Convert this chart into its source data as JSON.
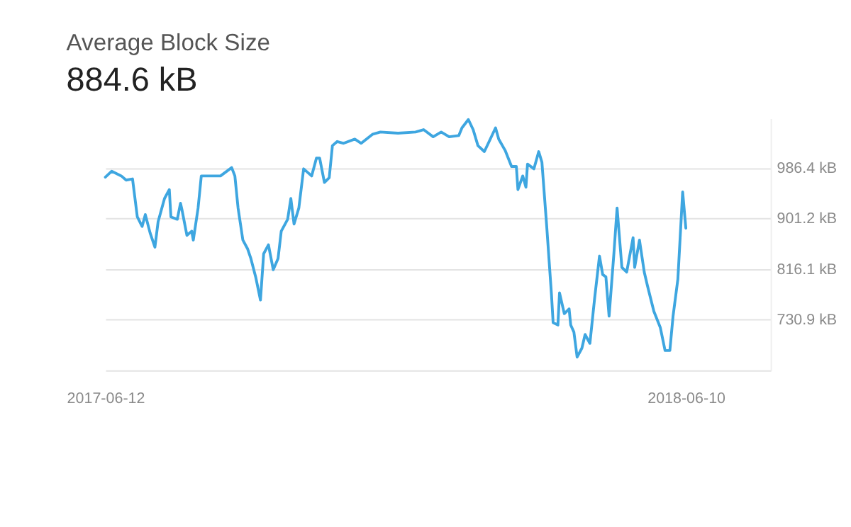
{
  "chart_data": {
    "type": "line",
    "title": "Average Block Size",
    "subtitle": "884.6 kB",
    "x": [
      "2017-06-12",
      "2017-06-16",
      "2017-06-22",
      "2017-06-25",
      "2017-06-29",
      "2017-07-02",
      "2017-07-05",
      "2017-07-07",
      "2017-07-10",
      "2017-07-13",
      "2017-07-15",
      "2017-07-19",
      "2017-07-22",
      "2017-07-23",
      "2017-07-27",
      "2017-07-29",
      "2017-07-30",
      "2017-08-02",
      "2017-08-05",
      "2017-08-06",
      "2017-08-09",
      "2017-08-11",
      "2017-08-18",
      "2017-08-23",
      "2017-08-30",
      "2017-09-01",
      "2017-09-03",
      "2017-09-06",
      "2017-09-09",
      "2017-09-11",
      "2017-09-14",
      "2017-09-17",
      "2017-09-19",
      "2017-09-22",
      "2017-09-25",
      "2017-09-28",
      "2017-09-30",
      "2017-10-04",
      "2017-10-06",
      "2017-10-08",
      "2017-10-11",
      "2017-10-14",
      "2017-10-19",
      "2017-10-22",
      "2017-10-24",
      "2017-10-27",
      "2017-10-30",
      "2017-11-01",
      "2017-11-04",
      "2017-11-08",
      "2017-11-15",
      "2017-11-19",
      "2017-11-26",
      "2017-12-01",
      "2017-12-12",
      "2017-12-23",
      "2017-12-28",
      "2018-01-03",
      "2018-01-08",
      "2018-01-13",
      "2018-01-19",
      "2018-01-21",
      "2018-01-25",
      "2018-01-28",
      "2018-01-31",
      "2018-02-04",
      "2018-02-07",
      "2018-02-11",
      "2018-02-13",
      "2018-02-17",
      "2018-02-21",
      "2018-02-24",
      "2018-02-25",
      "2018-02-28",
      "2018-03-02",
      "2018-03-03",
      "2018-03-07",
      "2018-03-10",
      "2018-03-12",
      "2018-03-15",
      "2018-03-18",
      "2018-03-19",
      "2018-03-22",
      "2018-03-23",
      "2018-03-26",
      "2018-03-29",
      "2018-03-30",
      "2018-04-01",
      "2018-04-03",
      "2018-04-06",
      "2018-04-08",
      "2018-04-11",
      "2018-04-14",
      "2018-04-17",
      "2018-04-19",
      "2018-04-21",
      "2018-04-23",
      "2018-04-26",
      "2018-04-28",
      "2018-05-01",
      "2018-05-04",
      "2018-05-08",
      "2018-05-09",
      "2018-05-12",
      "2018-05-15",
      "2018-05-17",
      "2018-05-21",
      "2018-05-25",
      "2018-05-28",
      "2018-05-31",
      "2018-06-02",
      "2018-06-05",
      "2018-06-08",
      "2018-06-10"
    ],
    "series": [
      {
        "color": "#3ea6e0",
        "values": [
          971,
          981,
          973,
          966,
          968,
          904,
          888,
          908,
          877,
          853,
          896,
          935,
          950,
          904,
          900,
          927,
          915,
          873,
          880,
          865,
          919,
          973,
          973,
          973,
          987,
          973,
          919,
          865,
          850,
          834,
          803,
          764,
          842,
          857,
          815,
          834,
          880,
          900,
          935,
          892,
          919,
          985,
          973,
          1003,
          1003,
          962,
          970,
          1024,
          1031,
          1028,
          1035,
          1028,
          1043,
          1047,
          1045,
          1047,
          1051,
          1039,
          1047,
          1039,
          1041,
          1054,
          1068,
          1051,
          1024,
          1014,
          1031,
          1054,
          1035,
          1016,
          989,
          989,
          950,
          973,
          954,
          993,
          985,
          1014,
          996,
          888,
          772,
          726,
          722,
          776,
          741,
          749,
          722,
          710,
          668,
          683,
          706,
          691,
          768,
          838,
          807,
          803,
          737,
          842,
          919,
          819,
          811,
          869,
          819,
          865,
          811,
          788,
          745,
          718,
          679,
          679,
          737,
          799,
          946,
          885
        ]
      }
    ],
    "xlim": [
      "2017-06-12",
      "2018-08-02"
    ],
    "xticks": [
      "2017-06-12",
      "2018-06-10"
    ],
    "ylim": [
      645.7,
      1070
    ],
    "yticks": [
      {
        "value": 986.4,
        "label": "986.4 kB"
      },
      {
        "value": 901.2,
        "label": "901.2 kB"
      },
      {
        "value": 816.1,
        "label": "816.1 kB"
      },
      {
        "value": 730.9,
        "label": "730.9 kB"
      }
    ],
    "grid": "y",
    "marker": "none",
    "line_style": "solid"
  }
}
